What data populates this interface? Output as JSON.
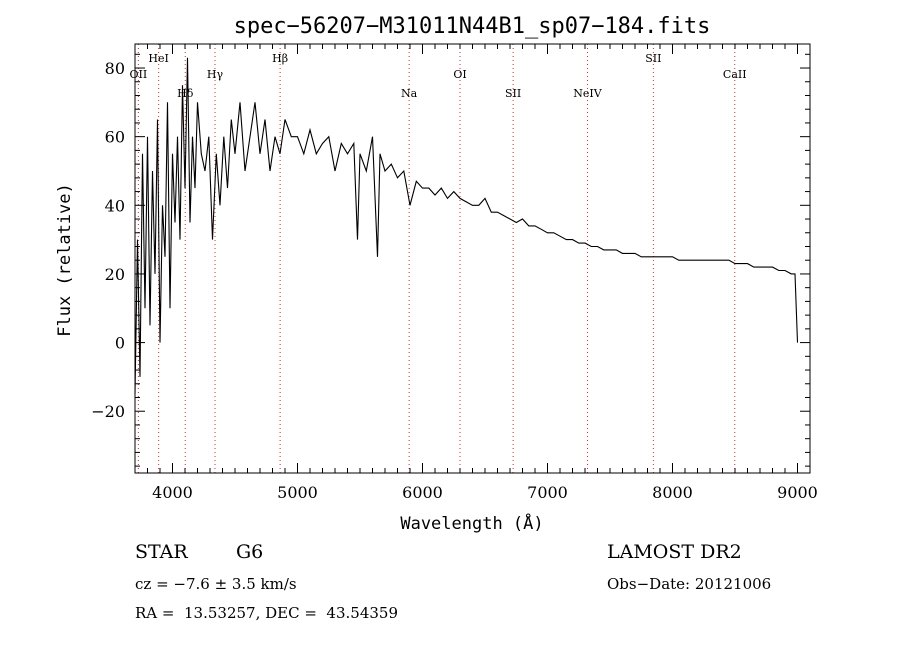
{
  "chart_data": {
    "type": "line",
    "title": "spec−56207−M31011N44B1_sp07−184.fits",
    "xlabel": "Wavelength (Å)",
    "ylabel": "Flux (relative)",
    "xlim": [
      3700,
      9100
    ],
    "ylim": [
      -38,
      87
    ],
    "x_ticks": [
      4000,
      5000,
      6000,
      7000,
      8000,
      9000
    ],
    "x_tick_labels": [
      "4000",
      "5000",
      "6000",
      "7000",
      "8000",
      "9000"
    ],
    "y_ticks": [
      -20,
      0,
      20,
      40,
      60,
      80
    ],
    "y_tick_labels": [
      "−20",
      "0",
      "20",
      "40",
      "60",
      "80"
    ],
    "grid": false,
    "series": [
      {
        "x": [
          3700,
          3720,
          3740,
          3760,
          3780,
          3800,
          3820,
          3840,
          3860,
          3880,
          3900,
          3920,
          3940,
          3960,
          3980,
          4000,
          4020,
          4040,
          4060,
          4080,
          4100,
          4120,
          4140,
          4160,
          4180,
          4200,
          4230,
          4260,
          4290,
          4320,
          4350,
          4380,
          4410,
          4440,
          4470,
          4500,
          4540,
          4580,
          4620,
          4660,
          4700,
          4740,
          4780,
          4820,
          4860,
          4900,
          4950,
          5000,
          5050,
          5100,
          5150,
          5200,
          5250,
          5300,
          5350,
          5400,
          5450,
          5480,
          5500,
          5550,
          5600,
          5640,
          5660,
          5700,
          5750,
          5800,
          5850,
          5900,
          5950,
          6000,
          6050,
          6100,
          6150,
          6200,
          6250,
          6300,
          6350,
          6400,
          6450,
          6500,
          6550,
          6600,
          6650,
          6700,
          6750,
          6800,
          6850,
          6900,
          6950,
          7000,
          7050,
          7100,
          7150,
          7200,
          7250,
          7300,
          7350,
          7400,
          7450,
          7500,
          7550,
          7600,
          7650,
          7700,
          7750,
          7800,
          7850,
          7900,
          7950,
          8000,
          8050,
          8100,
          8150,
          8200,
          8250,
          8300,
          8350,
          8400,
          8450,
          8500,
          8550,
          8600,
          8650,
          8700,
          8750,
          8800,
          8850,
          8900,
          8950,
          8980,
          9000
        ],
        "y": [
          -15,
          30,
          -10,
          55,
          10,
          60,
          5,
          50,
          20,
          65,
          0,
          40,
          25,
          70,
          10,
          55,
          35,
          60,
          30,
          75,
          45,
          83,
          35,
          60,
          45,
          70,
          55,
          50,
          60,
          30,
          55,
          40,
          60,
          45,
          65,
          55,
          70,
          50,
          60,
          70,
          55,
          65,
          50,
          60,
          55,
          65,
          60,
          60,
          55,
          62,
          55,
          58,
          60,
          50,
          58,
          55,
          58,
          30,
          55,
          50,
          60,
          25,
          55,
          50,
          52,
          48,
          50,
          40,
          47,
          45,
          45,
          43,
          45,
          42,
          44,
          42,
          41,
          40,
          40,
          42,
          38,
          38,
          37,
          36,
          35,
          36,
          34,
          34,
          33,
          32,
          32,
          31,
          30,
          30,
          29,
          29,
          28,
          28,
          27,
          27,
          27,
          26,
          26,
          26,
          25,
          25,
          25,
          25,
          25,
          25,
          24,
          24,
          24,
          24,
          24,
          24,
          24,
          24,
          24,
          23,
          23,
          23,
          22,
          22,
          22,
          22,
          21,
          21,
          20,
          20,
          0
        ]
      }
    ],
    "line_labels": [
      {
        "name": "OII",
        "x": 3727,
        "level": "top"
      },
      {
        "name": "HeI",
        "x": 3889,
        "level": "upper"
      },
      {
        "name": "Hδ",
        "x": 4102,
        "level": "lower"
      },
      {
        "name": "Hγ",
        "x": 4340,
        "level": "middle"
      },
      {
        "name": "Hβ",
        "x": 4861,
        "level": "upper"
      },
      {
        "name": "Na",
        "x": 5893,
        "level": "lower"
      },
      {
        "name": "OI",
        "x": 6300,
        "level": "middle"
      },
      {
        "name": "SII",
        "x": 6725,
        "level": "lower"
      },
      {
        "name": "NeIV",
        "x": 7320,
        "level": "lower"
      },
      {
        "name": "SII",
        "x": 7847,
        "level": "upper"
      },
      {
        "name": "CaII",
        "x": 8498,
        "level": "middle"
      }
    ]
  },
  "info": {
    "object_class": "STAR",
    "subclass": "G6",
    "redshift": "cz = −7.6 ± 3.5 km/s",
    "coords": "RA =  13.53257, DEC =  43.54359",
    "survey": "LAMOST DR2",
    "obs_date": "Obs−Date: 20121006"
  }
}
